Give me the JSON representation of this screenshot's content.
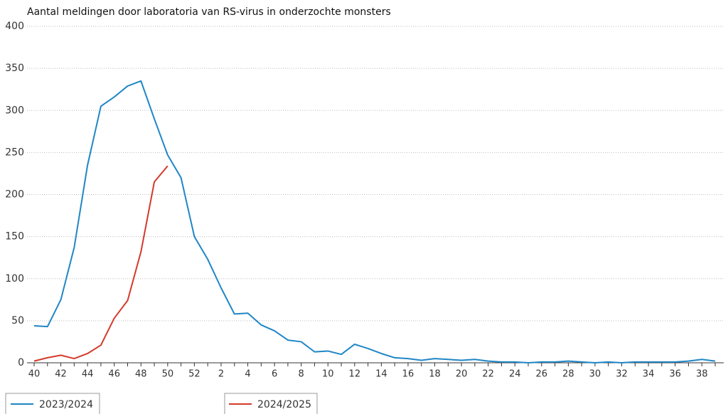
{
  "chart_data": {
    "type": "line",
    "title": "Aantal meldingen door laboratoria van RS-virus in onderzochte monsters",
    "categories": [
      "40",
      null,
      "42",
      null,
      "44",
      null,
      "46",
      null,
      "48",
      null,
      "50",
      null,
      "52",
      null,
      "2",
      null,
      "4",
      null,
      "6",
      null,
      "8",
      null,
      "10",
      null,
      "12",
      null,
      "14",
      null,
      "16",
      null,
      "18",
      null,
      "20",
      null,
      "22",
      null,
      "24",
      null,
      "26",
      null,
      "28",
      null,
      "30",
      null,
      "32",
      null,
      "34",
      null,
      "36",
      null,
      "38",
      null
    ],
    "series": [
      {
        "name": "2023/2024",
        "color": "#1f86c6",
        "values": [
          44,
          43,
          75,
          137,
          235,
          305,
          316,
          329,
          335,
          290,
          247,
          220,
          150,
          123,
          89,
          58,
          59,
          45,
          38,
          27,
          25,
          13,
          14,
          10,
          22,
          17,
          11,
          6,
          5,
          3,
          5,
          4,
          3,
          4,
          2,
          1,
          1,
          0,
          1,
          1,
          2,
          1,
          0,
          1,
          0,
          1,
          1,
          1,
          1,
          2,
          4,
          2
        ]
      },
      {
        "name": "2024/2025",
        "color": "#d33a2c",
        "values": [
          2,
          6,
          9,
          5,
          11,
          21,
          53,
          74,
          132,
          215,
          234,
          null,
          null,
          null,
          null,
          null,
          null,
          null,
          null,
          null,
          null,
          null,
          null,
          null,
          null,
          null,
          null,
          null,
          null,
          null,
          null,
          null,
          null,
          null,
          null,
          null,
          null,
          null,
          null,
          null,
          null,
          null,
          null,
          null,
          null,
          null,
          null,
          null,
          null,
          null,
          null,
          null
        ]
      }
    ],
    "ylim": [
      0,
      400
    ],
    "yticks": [
      0,
      50,
      100,
      150,
      200,
      250,
      300,
      350,
      400
    ],
    "grid": true
  }
}
